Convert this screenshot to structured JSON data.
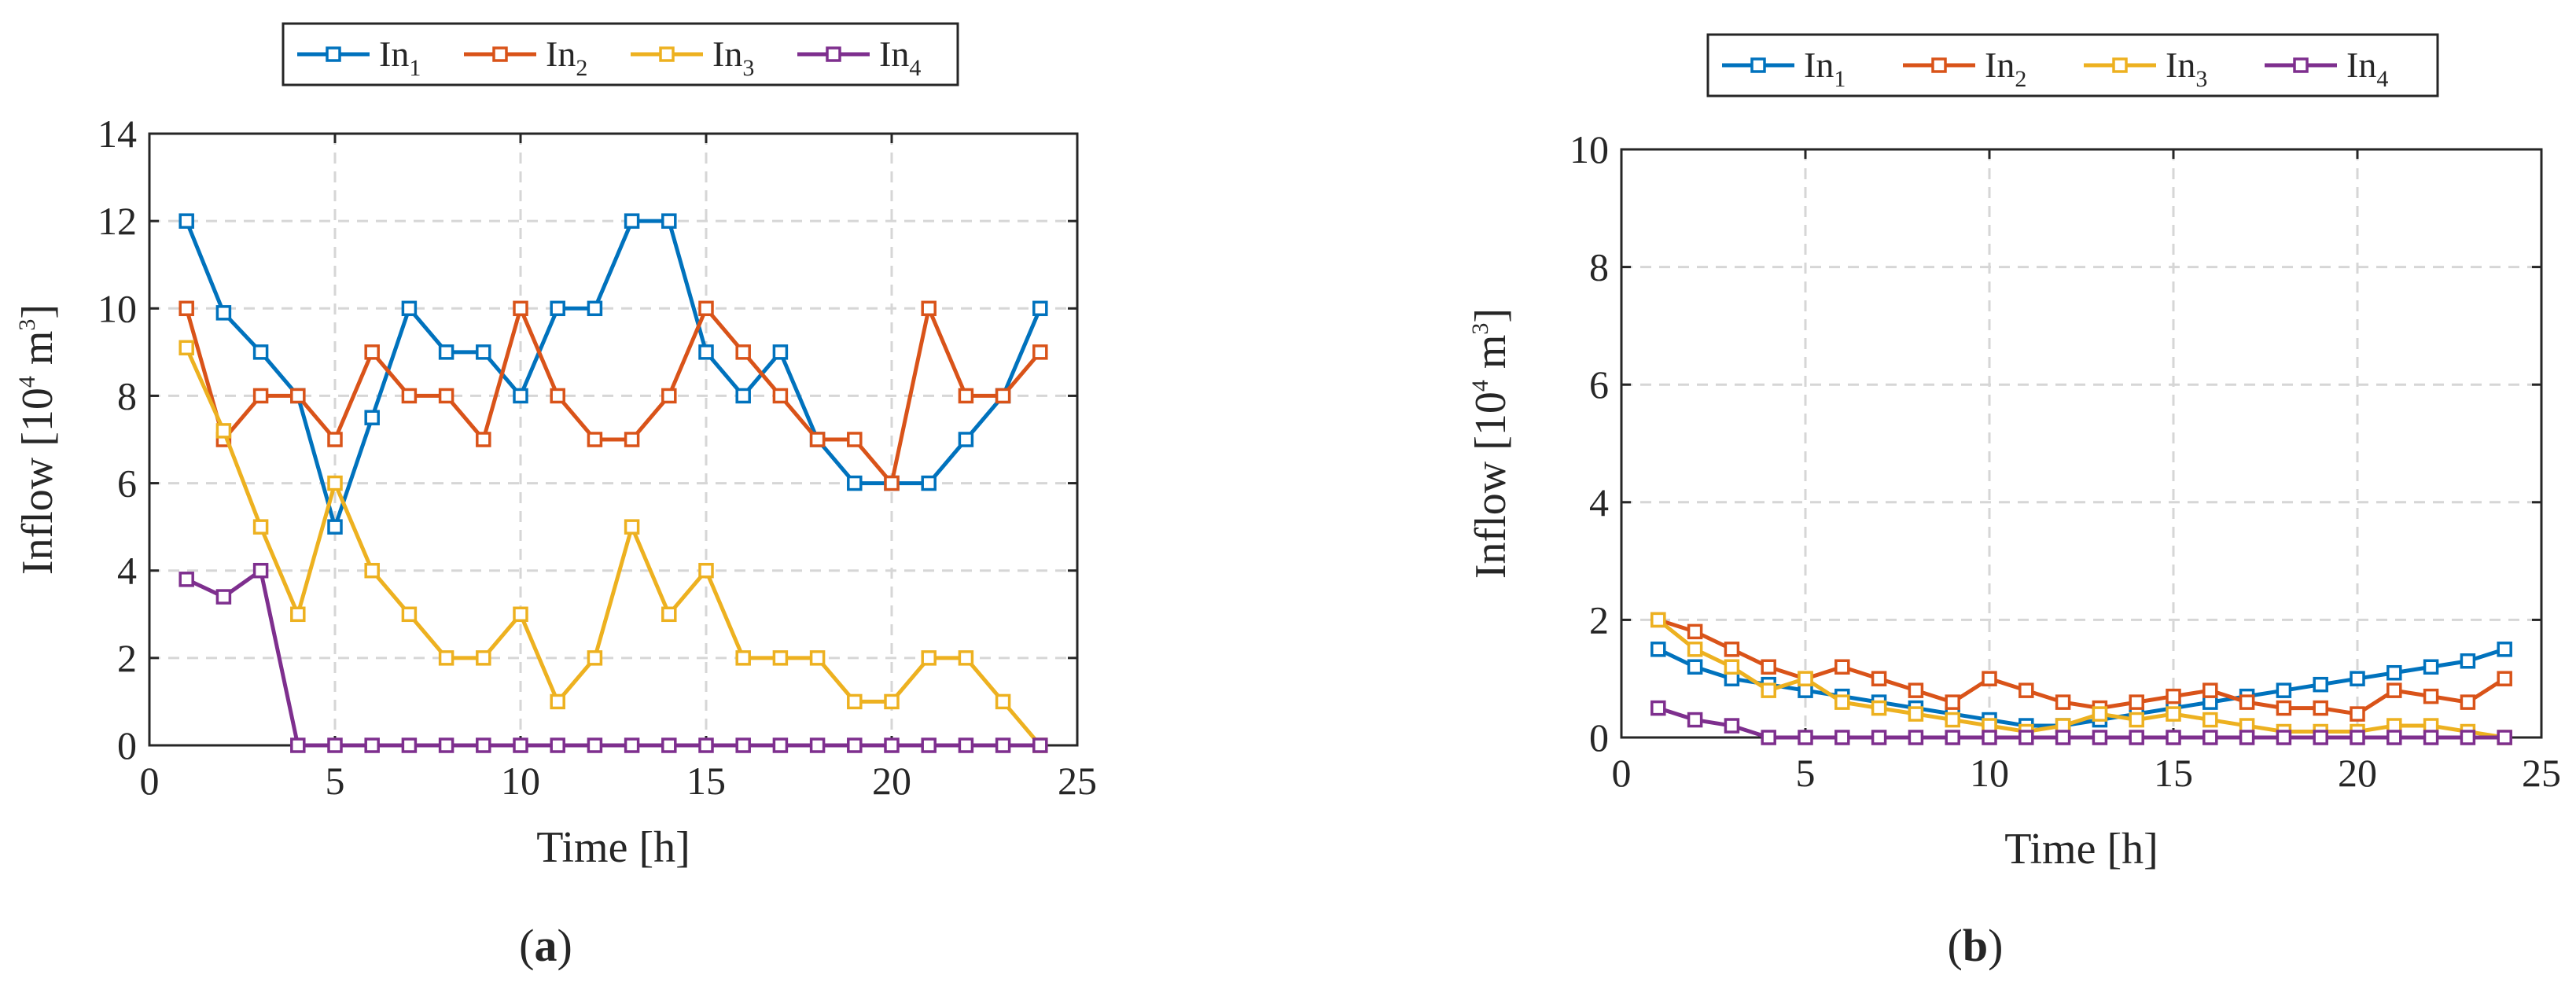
{
  "chart_data": [
    {
      "type": "line",
      "panel_label": "(a)",
      "xlabel": "Time [h]",
      "ylabel": "Inflow",
      "ylabel_unit_base": "10",
      "ylabel_unit_exp": "4",
      "ylabel_unit_rest": "m",
      "ylabel_unit_rest_exp": "3",
      "xlim": [
        0,
        25
      ],
      "ylim": [
        0,
        14
      ],
      "xticks": [
        0,
        5,
        10,
        15,
        20,
        25
      ],
      "yticks": [
        0,
        2,
        4,
        6,
        8,
        10,
        12,
        14
      ],
      "grid": true,
      "legend": {
        "placement": "top",
        "orientation": "horizontal"
      },
      "x": [
        1,
        2,
        3,
        4,
        5,
        6,
        7,
        8,
        9,
        10,
        11,
        12,
        13,
        14,
        15,
        16,
        17,
        18,
        19,
        20,
        21,
        22,
        23,
        24
      ],
      "series": [
        {
          "name": "In",
          "sub": "1",
          "color": "#0072BD",
          "values": [
            12,
            9.9,
            9,
            8,
            5,
            7.5,
            10,
            9,
            9,
            8,
            10,
            10,
            12,
            12,
            9,
            8,
            9,
            7,
            6,
            6,
            6,
            7,
            8,
            10
          ]
        },
        {
          "name": "In",
          "sub": "2",
          "color": "#D95319",
          "values": [
            10,
            7,
            8,
            8,
            7,
            9,
            8,
            8,
            7,
            10,
            8,
            7,
            7,
            8,
            10,
            9,
            8,
            7,
            7,
            6,
            10,
            8,
            8,
            9
          ]
        },
        {
          "name": "In",
          "sub": "3",
          "color": "#EDB120",
          "values": [
            9.1,
            7.2,
            5,
            3,
            6,
            4,
            3,
            2,
            2,
            3,
            1,
            2,
            5,
            3,
            4,
            2,
            2,
            2,
            1,
            1,
            2,
            2,
            1,
            0
          ]
        },
        {
          "name": "In",
          "sub": "4",
          "color": "#7E2F8E",
          "values": [
            3.8,
            3.4,
            4,
            0,
            0,
            0,
            0,
            0,
            0,
            0,
            0,
            0,
            0,
            0,
            0,
            0,
            0,
            0,
            0,
            0,
            0,
            0,
            0,
            0
          ]
        }
      ]
    },
    {
      "type": "line",
      "panel_label": "(b)",
      "xlabel": "Time [h]",
      "ylabel": "Inflow",
      "ylabel_unit_base": "10",
      "ylabel_unit_exp": "4",
      "ylabel_unit_rest": "m",
      "ylabel_unit_rest_exp": "3",
      "xlim": [
        0,
        25
      ],
      "ylim": [
        0,
        10
      ],
      "xticks": [
        0,
        5,
        10,
        15,
        20,
        25
      ],
      "yticks": [
        0,
        2,
        4,
        6,
        8,
        10
      ],
      "grid": true,
      "legend": {
        "placement": "top",
        "orientation": "horizontal"
      },
      "x": [
        1,
        2,
        3,
        4,
        5,
        6,
        7,
        8,
        9,
        10,
        11,
        12,
        13,
        14,
        15,
        16,
        17,
        18,
        19,
        20,
        21,
        22,
        23,
        24
      ],
      "series": [
        {
          "name": "In",
          "sub": "1",
          "color": "#0072BD",
          "values": [
            1.5,
            1.2,
            1,
            0.9,
            0.8,
            0.7,
            0.6,
            0.5,
            0.4,
            0.3,
            0.2,
            0.2,
            0.3,
            0.4,
            0.5,
            0.6,
            0.7,
            0.8,
            0.9,
            1,
            1.1,
            1.2,
            1.3,
            1.5
          ]
        },
        {
          "name": "In",
          "sub": "2",
          "color": "#D95319",
          "values": [
            2,
            1.8,
            1.5,
            1.2,
            1,
            1.2,
            1,
            0.8,
            0.6,
            1,
            0.8,
            0.6,
            0.5,
            0.6,
            0.7,
            0.8,
            0.6,
            0.5,
            0.5,
            0.4,
            0.8,
            0.7,
            0.6,
            1
          ]
        },
        {
          "name": "In",
          "sub": "3",
          "color": "#EDB120",
          "values": [
            2,
            1.5,
            1.2,
            0.8,
            1,
            0.6,
            0.5,
            0.4,
            0.3,
            0.2,
            0.1,
            0.2,
            0.4,
            0.3,
            0.4,
            0.3,
            0.2,
            0.1,
            0.1,
            0.1,
            0.2,
            0.2,
            0.1,
            0
          ]
        },
        {
          "name": "In",
          "sub": "4",
          "color": "#7E2F8E",
          "values": [
            0.5,
            0.3,
            0.2,
            0,
            0,
            0,
            0,
            0,
            0,
            0,
            0,
            0,
            0,
            0,
            0,
            0,
            0,
            0,
            0,
            0,
            0,
            0,
            0,
            0
          ]
        }
      ]
    }
  ]
}
